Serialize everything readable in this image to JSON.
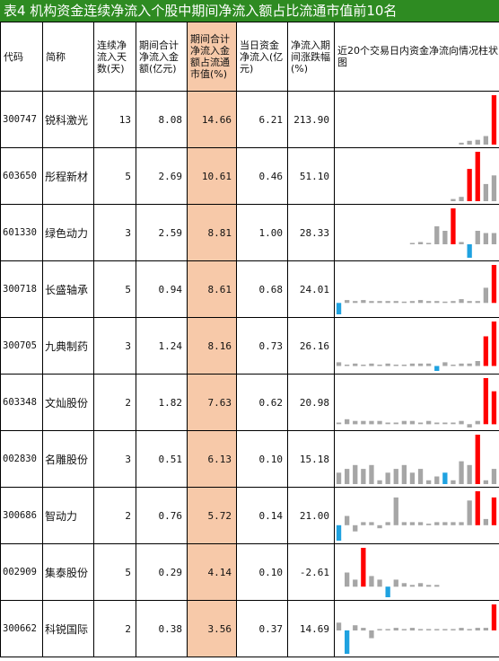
{
  "title": "表4  机构资金连续净流入个股中期间净流入额占比流通市值前10名",
  "headers": {
    "code": "代码",
    "name": "简称",
    "days": "连续净流入天数(天)",
    "amount": "期间合计净流入金额(亿元)",
    "ratio": "期间合计净流入金额占流通市值(%)",
    "today": "当日资金净流入(亿元)",
    "change": "净流入期间涨跌幅(%)",
    "chart": "近20个交易日内资金净流向情况柱状图"
  },
  "colors": {
    "title_bg": "#2e8b22",
    "highlight": "#f7c9a9",
    "bar_normal": "#a6a6a6",
    "bar_period": "#ff0000",
    "bar_negative": "#1fa2e0"
  },
  "rows": [
    {
      "code": "300747",
      "name": "锐科激光",
      "days": "13",
      "amount": "8.08",
      "ratio": "14.66",
      "today": "6.21",
      "change": "213.90",
      "bars": [
        0,
        0,
        0,
        0,
        0,
        0,
        0,
        0,
        0,
        0,
        0,
        0,
        0,
        0,
        0,
        0.2,
        0.4,
        0.5,
        0.9,
        5.2
      ],
      "colors": [
        "n",
        "n",
        "n",
        "n",
        "n",
        "n",
        "n",
        "n",
        "n",
        "n",
        "n",
        "n",
        "n",
        "n",
        "n",
        "n",
        "n",
        "n",
        "n",
        "p"
      ]
    },
    {
      "code": "603650",
      "name": "彤程新材",
      "days": "5",
      "amount": "2.69",
      "ratio": "10.61",
      "today": "0.46",
      "change": "51.10",
      "bars": [
        0,
        0,
        0,
        0,
        0,
        0,
        0,
        0,
        0,
        0,
        0,
        0,
        0,
        0,
        0.1,
        0.2,
        1.5,
        2.3,
        0.8,
        1.2
      ],
      "colors": [
        "n",
        "n",
        "n",
        "n",
        "n",
        "n",
        "n",
        "n",
        "n",
        "n",
        "n",
        "n",
        "n",
        "n",
        "n",
        "n",
        "p",
        "p",
        "n",
        "n"
      ]
    },
    {
      "code": "601330",
      "name": "绿色动力",
      "days": "3",
      "amount": "2.59",
      "ratio": "8.81",
      "today": "1.00",
      "change": "28.33",
      "bars": [
        0,
        0,
        0,
        0,
        0,
        0,
        0,
        0,
        0,
        0.05,
        0.1,
        0.05,
        0.8,
        0.6,
        1.6,
        0.1,
        -0.6,
        0.6,
        0.5,
        0.5
      ],
      "colors": [
        "n",
        "n",
        "n",
        "n",
        "n",
        "n",
        "n",
        "n",
        "n",
        "n",
        "n",
        "n",
        "n",
        "n",
        "p",
        "n",
        "b",
        "n",
        "n",
        "n"
      ]
    },
    {
      "code": "300718",
      "name": "长盛轴承",
      "days": "5",
      "amount": "0.94",
      "ratio": "8.61",
      "today": "0.68",
      "change": "24.01",
      "bars": [
        -0.6,
        0.15,
        0.1,
        0.15,
        0.1,
        0.1,
        0.1,
        0.1,
        0.05,
        0.1,
        0.15,
        0.1,
        0.1,
        0.05,
        0.1,
        0.2,
        0.1,
        0.1,
        0.8,
        2.0
      ],
      "colors": [
        "b",
        "n",
        "n",
        "n",
        "n",
        "n",
        "n",
        "n",
        "n",
        "n",
        "n",
        "n",
        "n",
        "n",
        "n",
        "n",
        "n",
        "n",
        "n",
        "p"
      ]
    },
    {
      "code": "300705",
      "name": "九典制药",
      "days": "3",
      "amount": "1.24",
      "ratio": "8.16",
      "today": "0.73",
      "change": "26.16",
      "bars": [
        0.15,
        0.05,
        0.1,
        0.05,
        0.1,
        0.05,
        0.1,
        0.05,
        0.05,
        0.1,
        0.1,
        0.1,
        -0.2,
        0.15,
        0.05,
        0.1,
        0.1,
        0.2,
        1.2,
        1.8
      ],
      "colors": [
        "n",
        "n",
        "n",
        "n",
        "n",
        "n",
        "n",
        "n",
        "n",
        "n",
        "n",
        "n",
        "b",
        "n",
        "n",
        "n",
        "n",
        "n",
        "p",
        "p"
      ]
    },
    {
      "code": "603348",
      "name": "文灿股份",
      "days": "2",
      "amount": "1.82",
      "ratio": "7.63",
      "today": "0.62",
      "change": "20.98",
      "bars": [
        0.05,
        0.15,
        0.1,
        0.1,
        0.1,
        0.1,
        0.05,
        0.05,
        0.1,
        0.1,
        0.05,
        0.1,
        0.05,
        0.05,
        0.05,
        0.1,
        -0.1,
        0.1,
        1.4,
        1.0
      ],
      "colors": [
        "n",
        "n",
        "n",
        "n",
        "n",
        "n",
        "n",
        "n",
        "n",
        "n",
        "n",
        "n",
        "n",
        "n",
        "n",
        "n",
        "n",
        "n",
        "p",
        "p"
      ]
    },
    {
      "code": "002830",
      "name": "名雕股份",
      "days": "3",
      "amount": "0.51",
      "ratio": "6.13",
      "today": "0.10",
      "change": "15.18",
      "bars": [
        0.3,
        0.4,
        0.5,
        0.4,
        0.5,
        0.1,
        0.3,
        0.4,
        0.5,
        0.3,
        0.4,
        0.1,
        0.2,
        0.3,
        0.1,
        0.6,
        0.5,
        1.3,
        0.1,
        0.4
      ],
      "colors": [
        "n",
        "n",
        "n",
        "n",
        "n",
        "n",
        "n",
        "n",
        "n",
        "n",
        "n",
        "n",
        "n",
        "b",
        "n",
        "n",
        "n",
        "p",
        "n",
        "n"
      ]
    },
    {
      "code": "300686",
      "name": "智动力",
      "days": "2",
      "amount": "0.76",
      "ratio": "5.72",
      "today": "0.14",
      "change": "21.00",
      "bars": [
        -0.5,
        0.3,
        -0.2,
        0.1,
        0.1,
        -0.1,
        0.1,
        0.9,
        0.1,
        0.1,
        0.1,
        0.05,
        0.1,
        0.1,
        0.1,
        0.1,
        0.8,
        1.1,
        0.2,
        0.9
      ],
      "colors": [
        "b",
        "n",
        "n",
        "n",
        "n",
        "n",
        "n",
        "n",
        "n",
        "n",
        "n",
        "n",
        "n",
        "n",
        "n",
        "n",
        "n",
        "p",
        "n",
        "p"
      ]
    },
    {
      "code": "002909",
      "name": "集泰股份",
      "days": "5",
      "amount": "0.29",
      "ratio": "4.14",
      "today": "0.10",
      "change": "-2.61",
      "bars": [
        0,
        0.4,
        0.2,
        1.1,
        0.3,
        0.2,
        -0.3,
        0.2,
        0.1,
        0.05,
        0.1,
        0.05,
        0.05,
        0,
        0,
        0,
        0,
        0,
        0,
        0
      ],
      "colors": [
        "n",
        "n",
        "n",
        "p",
        "n",
        "n",
        "b",
        "n",
        "n",
        "n",
        "n",
        "n",
        "n",
        "n",
        "n",
        "n",
        "n",
        "n",
        "n",
        "n"
      ]
    },
    {
      "code": "300662",
      "name": "科锐国际",
      "days": "2",
      "amount": "0.38",
      "ratio": "3.56",
      "today": "0.37",
      "change": "14.69",
      "bars": [
        0.3,
        -0.9,
        0.2,
        0.1,
        -0.3,
        0.05,
        0.05,
        0.1,
        0.05,
        0.1,
        0.05,
        0.05,
        0.05,
        0.05,
        0.05,
        0.1,
        0.05,
        0.1,
        0.1,
        1.0
      ],
      "colors": [
        "n",
        "b",
        "n",
        "n",
        "n",
        "n",
        "n",
        "n",
        "n",
        "n",
        "n",
        "n",
        "n",
        "n",
        "n",
        "n",
        "n",
        "n",
        "n",
        "p"
      ]
    }
  ]
}
